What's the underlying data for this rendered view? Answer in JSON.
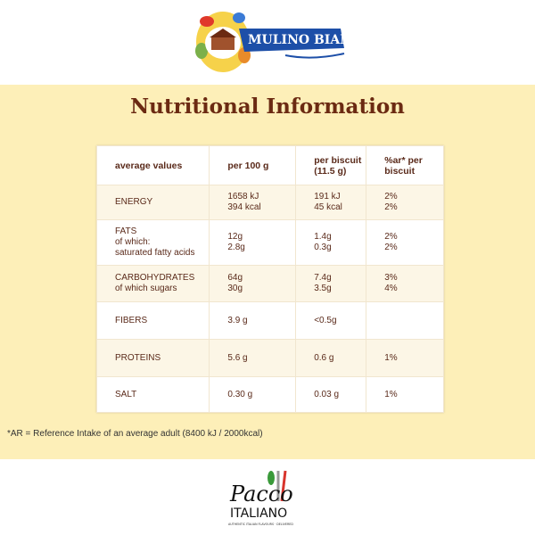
{
  "brand": {
    "name": "Mulino Bianco"
  },
  "header": {
    "title": "Nutritional Information"
  },
  "table": {
    "columns": [
      "average values",
      "per 100 g",
      "per biscuit (11.5 g)",
      "%ar* per biscuit"
    ],
    "rows": [
      [
        [
          "ENERGY"
        ],
        [
          "1658 kJ",
          "394 kcal"
        ],
        [
          "191 kJ",
          "45 kcal"
        ],
        [
          "2%",
          "2%"
        ]
      ],
      [
        [
          "FATS",
          "of which:",
          "saturated fatty acids"
        ],
        [
          "12g",
          "2.8g"
        ],
        [
          "1.4g",
          "0.3g"
        ],
        [
          "2%",
          "2%"
        ]
      ],
      [
        [
          "CARBOHYDRATES",
          "of which sugars"
        ],
        [
          "64g",
          "30g"
        ],
        [
          "7.4g",
          "3.5g"
        ],
        [
          "3%",
          "4%"
        ]
      ],
      [
        [
          "FIBERS"
        ],
        [
          "3.9 g"
        ],
        [
          "<0.5g"
        ],
        []
      ],
      [
        [
          "PROTEINS"
        ],
        [
          "5.6 g"
        ],
        [
          "0.6 g"
        ],
        [
          "1%"
        ]
      ],
      [
        [
          "SALT"
        ],
        [
          "0.30 g"
        ],
        [
          "0.03 g"
        ],
        [
          "1%"
        ]
      ]
    ]
  },
  "footnote": "*AR = Reference Intake of an average adult (8400 kJ / 2000kcal)",
  "footer": {
    "logo_top": "Pacco",
    "logo_bottom": "ITALIANO",
    "tagline": "AUTHENTIC ITALIAN FLAVOURS · DELIVERED"
  }
}
